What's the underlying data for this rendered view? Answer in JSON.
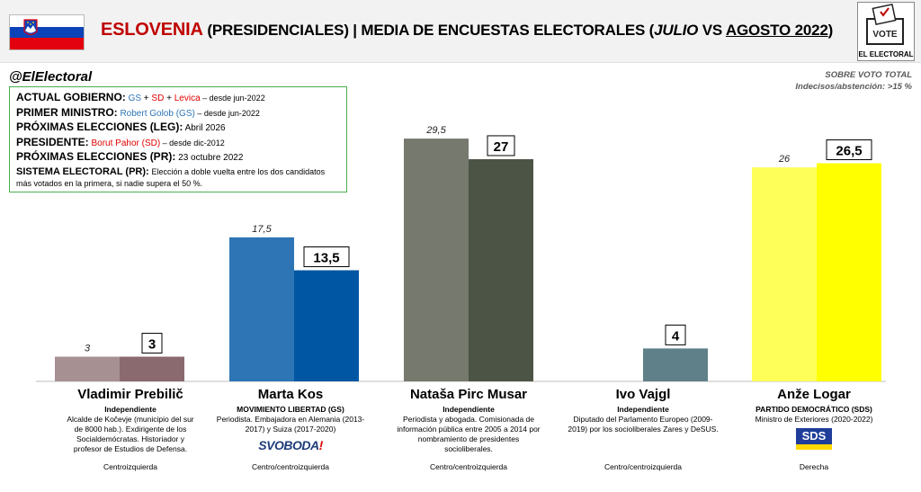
{
  "header": {
    "title_main": "ESLOVENIA",
    "title_sub": "(PRESIDENCIALES) | MEDIA DE ENCUESTAS ELECTORALES (",
    "title_month1": "JULIO",
    "title_vs": " VS ",
    "title_month2": "AGOSTO 2022",
    "title_close": ")",
    "logo_word": "VOTE",
    "logo_text": "EL ELECTORAL"
  },
  "handle": "@ElElectoral",
  "note": {
    "line1": "SOBRE VOTO TOTAL",
    "line2": "Indecisos/abstención: >15 %"
  },
  "infobox": {
    "gov_label": "ACTUAL GOBIERNO:",
    "gov_p1": "GS",
    "gov_plus1": " + ",
    "gov_p2": "SD",
    "gov_plus2": " + ",
    "gov_p3": "Levica",
    "gov_since": " – desde jun-2022",
    "pm_label": "PRIMER MINISTRO:",
    "pm_name": "Robert Golob (GS)",
    "pm_since": " – desde jun-2022",
    "leg_label": "PRÓXIMAS ELECCIONES (LEG):",
    "leg_date": "Abril 2026",
    "pres_label": "PRESIDENTE:",
    "pres_name": "Borut Pahor (SD)",
    "pres_since": " – desde dic-2012",
    "pr_label": "PRÓXIMAS ELECCIONES (PR):",
    "pr_date": "23 octubre 2022",
    "sys_label": "SISTEMA ELECTORAL (PR):",
    "sys_text": "Elección a doble vuelta entre los dos candidatos más votados en la primera, si nadie supera el 50 %."
  },
  "chart_data": {
    "type": "bar",
    "title": "ESLOVENIA (PRESIDENCIALES) | MEDIA DE ENCUESTAS ELECTORALES (JULIO VS AGOSTO 2022)",
    "categories": [
      "Vladimir Prebilič",
      "Marta Kos",
      "Nataša Pirc Musar",
      "Ivo Vajgl",
      "Anže Logar"
    ],
    "series": [
      {
        "name": "JULIO",
        "values": [
          3,
          17.5,
          29.5,
          null,
          26
        ],
        "labels": [
          "3",
          "17,5",
          "29,5",
          "",
          "26"
        ]
      },
      {
        "name": "AGOSTO 2022",
        "values": [
          3,
          13.5,
          27,
          4,
          26.5
        ],
        "labels": [
          "3",
          "13,5",
          "27",
          "4",
          "26,5"
        ]
      }
    ],
    "colors_july": [
      "#a79092",
      "#2e75b6",
      "#767a6e",
      "#5f8088",
      "#ffff59"
    ],
    "colors_aug": [
      "#8b6a6f",
      "#0156a3",
      "#4c5446",
      "#5f8088",
      "#ffff00"
    ],
    "ylim": [
      0,
      32
    ],
    "grid": false,
    "legend": "none"
  },
  "candidates": [
    {
      "name": "Vladimir Prebilič",
      "party": "Independiente",
      "desc": "Alcalde de Kočevje (municipio del sur de 8000 hab.). Exdirigente de los Socialdemócratas. Historiador y profesor de Estudios de Defensa.",
      "orientation": "Centroizquierda"
    },
    {
      "name": "Marta Kos",
      "party": "MOVIMIENTO LIBERTAD (GS)",
      "desc": "Periodista. Embajadora en Alemania (2013-2017) y Suiza (2017-2020)",
      "logo_text": "SVOBODA",
      "logo_ex": "!",
      "orientation": "Centro/centroizquierda"
    },
    {
      "name": "Nataša Pirc Musar",
      "party": "Independiente",
      "desc": "Periodista y abogada. Comisionada de información pública entre 2005 a 2014 por nombramiento de presidentes socioliberales.",
      "orientation": "Centro/centroizquierda"
    },
    {
      "name": "Ivo Vajgl",
      "party": "Independiente",
      "desc": "Diputado del Parlamento Europeo (2009-2019) por los socioliberales Zares y DeSUS.",
      "orientation": "Centro/centroizquierda"
    },
    {
      "name": "Anže Logar",
      "party": "PARTIDO DEMOCRÁTICO (SDS)",
      "desc": "Ministro de Exteriores (2020-2022)",
      "logo_text": "SDS",
      "orientation": "Derecha"
    }
  ]
}
